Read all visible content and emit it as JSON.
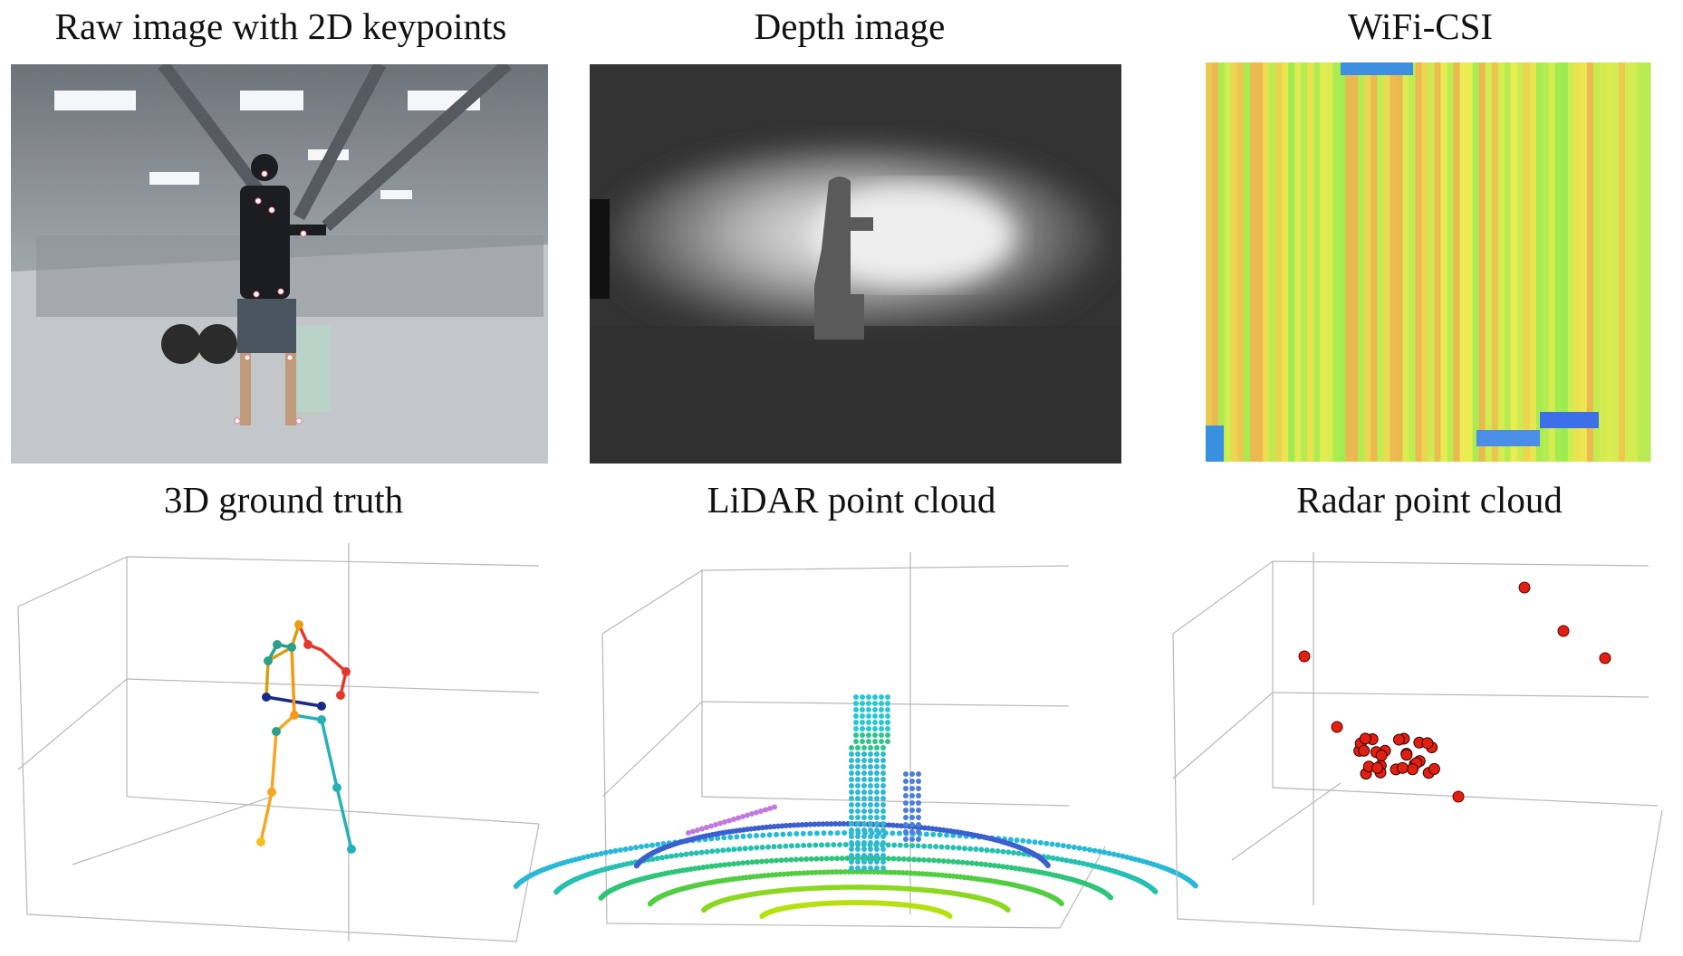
{
  "panels": [
    {
      "title": "Raw image with 2D keypoints"
    },
    {
      "title": "Depth image"
    },
    {
      "title": "WiFi-CSI"
    },
    {
      "title": "3D ground truth"
    },
    {
      "title": "LiDAR point cloud"
    },
    {
      "title": "Radar point cloud"
    }
  ]
}
